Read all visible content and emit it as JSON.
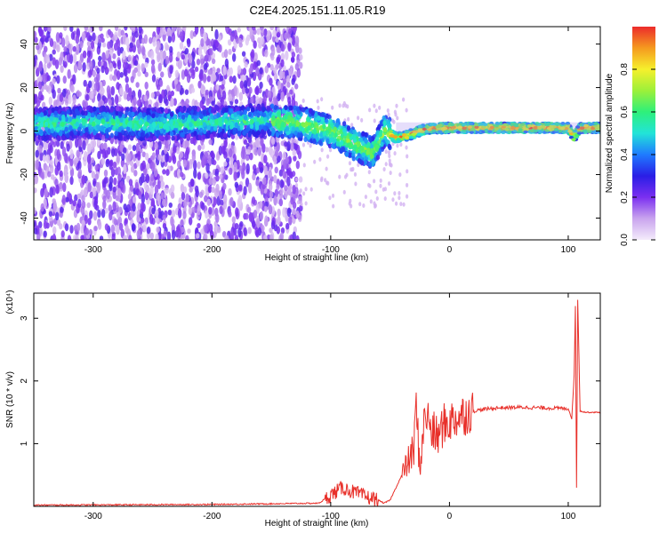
{
  "title": "C2E4.2025.151.11.05.R19",
  "chart_data": [
    {
      "type": "heatmap",
      "xlabel": "Height of straight line (km)",
      "ylabel": "Frequency (Hz)",
      "xlim": [
        -350,
        127
      ],
      "ylim": [
        -50,
        48
      ],
      "x_ticks": [
        -300,
        -200,
        -100,
        0,
        100
      ],
      "y_ticks": [
        -40,
        -20,
        0,
        20,
        40
      ],
      "colorbar": {
        "label": "Normalized spectral amplitude",
        "range": [
          0,
          1
        ],
        "ticks": [
          "0.0",
          "0.2",
          "0.4",
          "0.6",
          "0.8"
        ],
        "colors": [
          "#f4ecfb",
          "#c9a4ee",
          "#7b2ff0",
          "#2a1ee6",
          "#1f7bff",
          "#22e4d8",
          "#2ef07a",
          "#9cf03a",
          "#f6f02c",
          "#f59a1f",
          "#ec2b2b"
        ]
      },
      "ridge": {
        "x": [
          -350,
          -300,
          -250,
          -200,
          -150,
          -120,
          -100,
          -80,
          -65,
          -55,
          -45,
          -35,
          -20,
          0,
          50,
          100,
          105,
          110,
          127
        ],
        "y": [
          3,
          4,
          3,
          4,
          5,
          3,
          0,
          -6,
          -10,
          0,
          -3,
          -2,
          1,
          1.5,
          1.5,
          1.5,
          -3,
          1.5,
          1.5
        ]
      }
    },
    {
      "type": "line",
      "xlabel": "Height of straight line (km)",
      "ylabel": "SNR (10 * v/v)",
      "y_multiplier": "(x10⁴)",
      "xlim": [
        -350,
        127
      ],
      "ylim": [
        0,
        3.4
      ],
      "x_ticks": [
        -300,
        -200,
        -100,
        0,
        100
      ],
      "y_ticks": [
        1,
        2,
        3
      ],
      "color": "#e8302a",
      "series": [
        {
          "x": [
            -350,
            -200,
            -110,
            -100,
            -90,
            -80,
            -70,
            -60,
            -55,
            -50,
            -45,
            -40,
            -35,
            -30,
            -28,
            -25,
            -22,
            -20,
            -15,
            -10,
            -5,
            0,
            10,
            20,
            30,
            40,
            60,
            80,
            100,
            103,
            105,
            106,
            107,
            108,
            110,
            115,
            127
          ],
          "y": [
            0.02,
            0.03,
            0.05,
            0.18,
            0.3,
            0.22,
            0.15,
            0.1,
            0.05,
            0.1,
            0.3,
            0.5,
            0.7,
            0.9,
            1.6,
            0.6,
            1.2,
            1.5,
            1.2,
            1.1,
            1.3,
            1.35,
            1.45,
            1.52,
            1.55,
            1.57,
            1.58,
            1.57,
            1.56,
            1.4,
            2.1,
            3.2,
            0.3,
            3.3,
            1.52,
            1.5,
            1.5
          ]
        }
      ]
    }
  ]
}
